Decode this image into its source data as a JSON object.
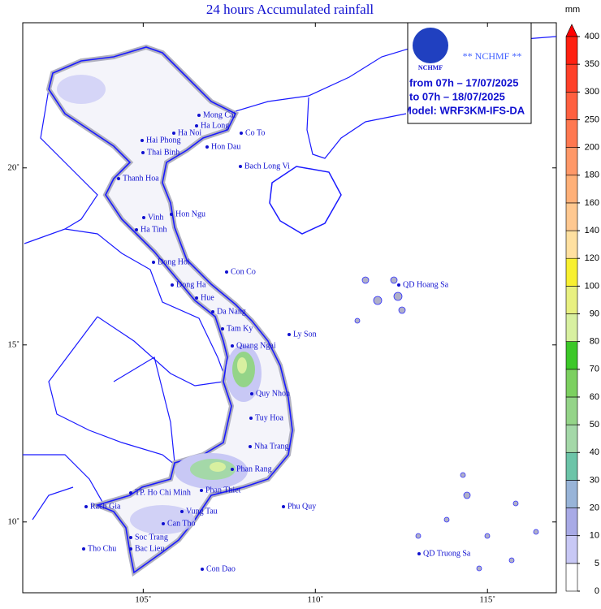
{
  "header": {
    "title": "24 hours Accumulated rainfall"
  },
  "info": {
    "logo": "NCHMF",
    "agency": "** NCHMF **",
    "from": "from 07h – 17/07/2025",
    "to": "to 07h – 18/07/2025",
    "model": "Model: WRF3KM-IFS-DA"
  },
  "map": {
    "lonlim": [
      101.5,
      117
    ],
    "latlim": [
      8,
      24.1
    ],
    "lon_ticks": [
      {
        "value": 105,
        "label": "105˚"
      },
      {
        "value": 110,
        "label": "110˚"
      },
      {
        "value": 115,
        "label": "115˚"
      }
    ],
    "lat_ticks": [
      {
        "value": 10,
        "label": "10˚"
      },
      {
        "value": 15,
        "label": "15˚"
      },
      {
        "value": 20,
        "label": "20˚"
      }
    ],
    "places": [
      "Mong Cai",
      "Ha Long",
      "Ha Noi",
      "Co To",
      "Hai Phong",
      "Hon Dau",
      "Thai Binh",
      "Bach Long Vi",
      "Thanh Hoa",
      "Vinh",
      "Hon Ngu",
      "Ha Tinh",
      "Dong Hoi",
      "Con Co",
      "Dong Ha",
      "Hue",
      "Da Nang",
      "Tam Ky",
      "Ly Son",
      "Quang Ngai",
      "QD Hoang Sa",
      "Quy Nhon",
      "Tuy Hoa",
      "Nha Trang",
      "Phan Rang",
      "Phan Thiet",
      "TP. Ho Chi Minh",
      "Vung Tau",
      "Rach Gia",
      "Phu Quy",
      "Can Tho",
      "Soc Trang",
      "Bac Lieu",
      "Tho Chu",
      "Con Dao",
      "QD Truong Sa"
    ]
  },
  "colorbar": {
    "unit": "mm",
    "levels": [
      0,
      5,
      10,
      20,
      30,
      40,
      50,
      60,
      70,
      80,
      90,
      100,
      120,
      140,
      160,
      180,
      200,
      250,
      300,
      350,
      400
    ],
    "colors": [
      "#ffffff",
      "#c8c8f5",
      "#a8aae6",
      "#98b4d8",
      "#6cc4a8",
      "#a4d8a8",
      "#94d488",
      "#7cd060",
      "#3cc828",
      "#d8f0a0",
      "#e8f080",
      "#f8f030",
      "#ffe0a0",
      "#ffc890",
      "#ffb078",
      "#ff9868",
      "#ff7850",
      "#ff6040",
      "#ff4028",
      "#ff2010"
    ],
    "top_color": "#ff0000"
  }
}
